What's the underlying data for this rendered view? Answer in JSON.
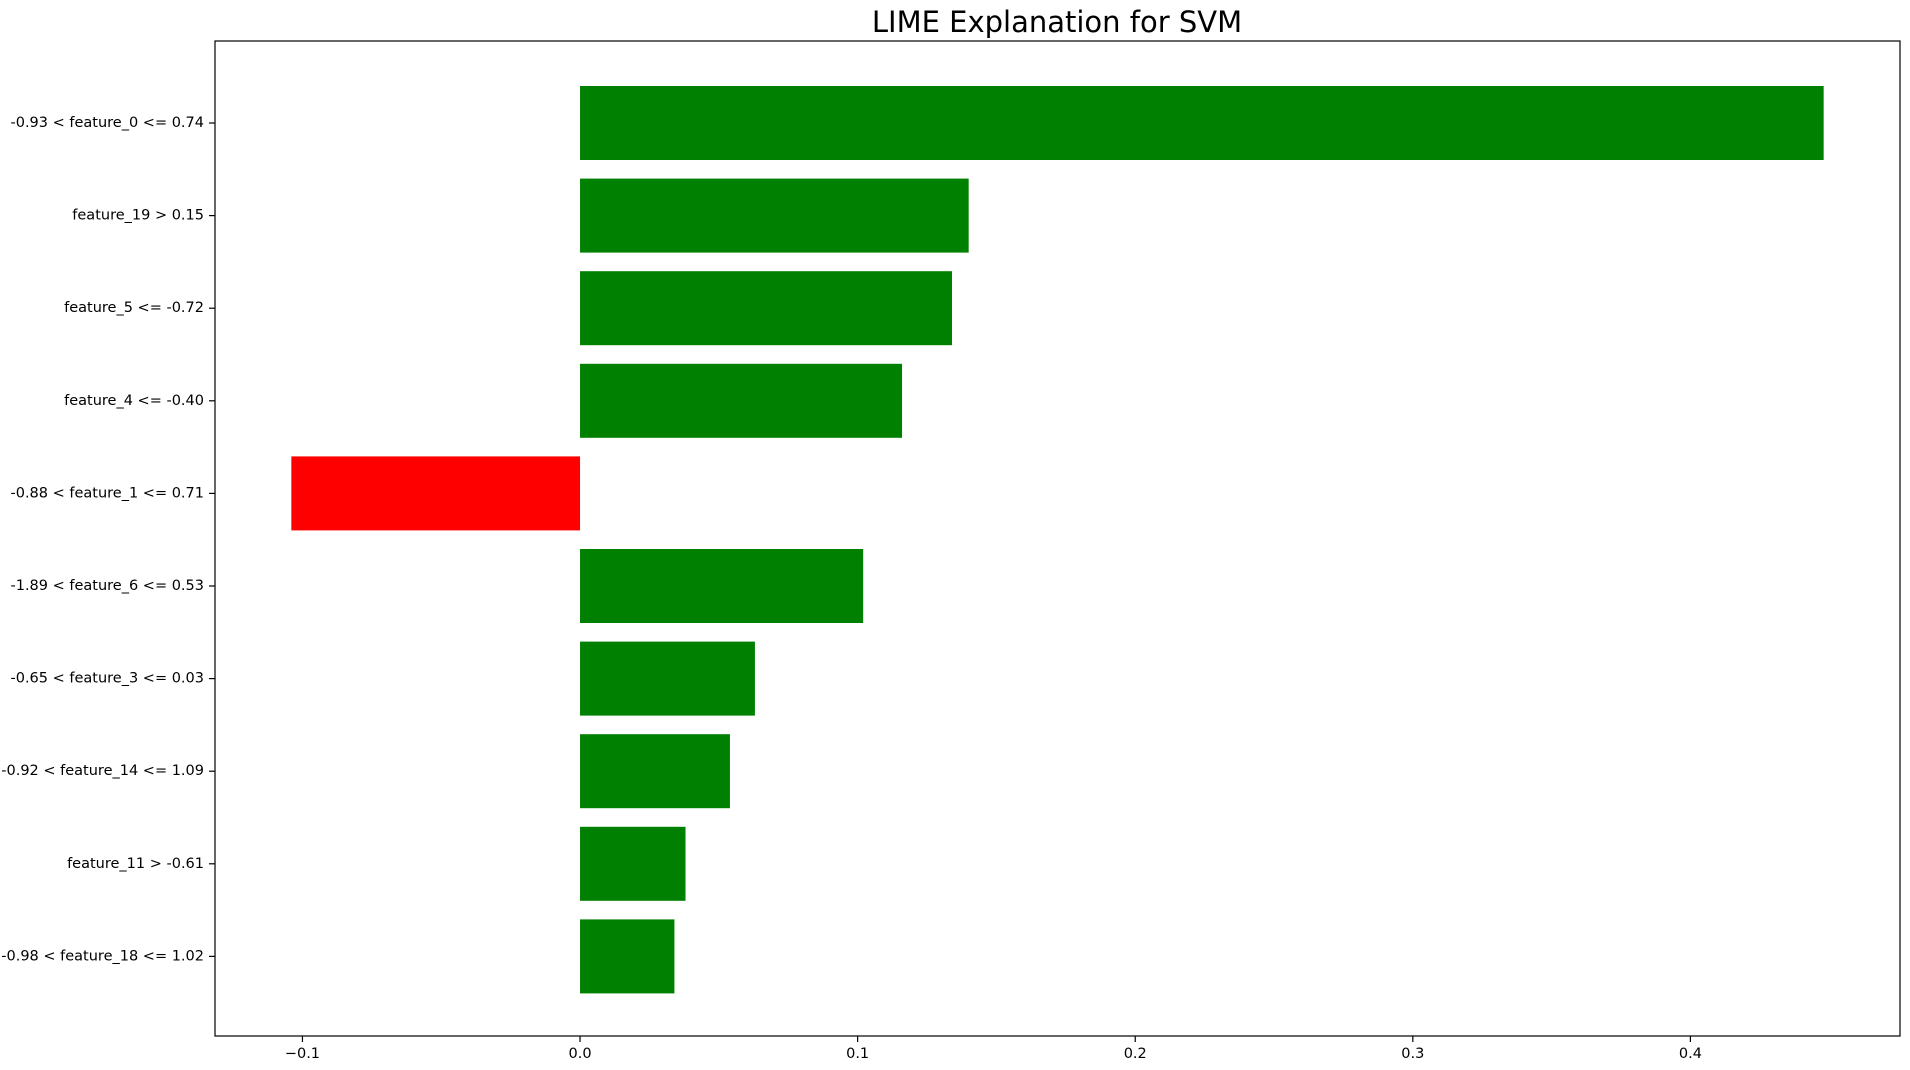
{
  "chart_data": {
    "type": "bar",
    "orientation": "horizontal",
    "title": "LIME Explanation for SVM",
    "xlabel": "",
    "ylabel": "",
    "categories": [
      "-0.93 < feature_0 <= 0.74",
      "feature_19 > 0.15",
      "feature_5 <= -0.72",
      "feature_4 <= -0.40",
      "-0.88 < feature_1 <= 0.71",
      "-1.89 < feature_6 <= 0.53",
      "-0.65 < feature_3 <= 0.03",
      "-0.92 < feature_14 <= 1.09",
      "feature_11 > -0.61",
      "-0.98 < feature_18 <= 1.02"
    ],
    "values": [
      0.448,
      0.14,
      0.134,
      0.116,
      -0.104,
      0.102,
      0.063,
      0.054,
      0.038,
      0.034
    ],
    "xlim": [
      -0.1315,
      0.4755
    ],
    "xticks": [
      -0.1,
      0.0,
      0.1,
      0.2,
      0.3,
      0.4
    ],
    "xtick_labels": [
      "−0.1",
      "0.0",
      "0.1",
      "0.2",
      "0.3",
      "0.4"
    ],
    "grid": false,
    "legend": "none",
    "colors": {
      "positive": "#008000",
      "negative": "#ff0000",
      "axis": "#000000",
      "background": "#ffffff"
    }
  }
}
